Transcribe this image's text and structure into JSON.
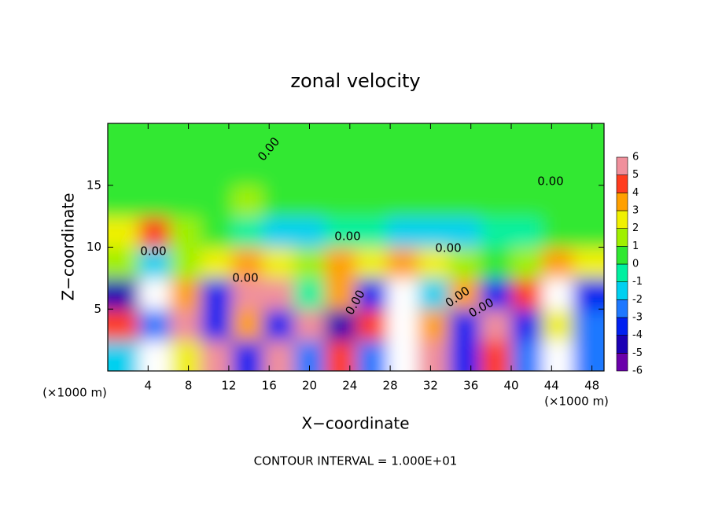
{
  "chart_data": {
    "type": "heatmap",
    "title": "zonal velocity",
    "x_label": "X−coordinate",
    "y_label": "Z−coordinate",
    "x_unit_label": "(×1000 m)",
    "note": "CONTOUR INTERVAL = 1.000E+01",
    "xlim": [
      0,
      49.2
    ],
    "ylim": [
      0,
      20
    ],
    "xticks": [
      4,
      8,
      12,
      16,
      20,
      24,
      28,
      32,
      36,
      40,
      44,
      48
    ],
    "yticks": [
      5,
      10,
      15
    ],
    "z": [
      [
        -2,
        7,
        2,
        5,
        -4,
        5,
        -3,
        4,
        -3,
        7,
        6,
        -4,
        4,
        -3,
        7,
        -3
      ],
      [
        4,
        -3,
        6,
        -4,
        3,
        -4,
        6,
        -5,
        4,
        7,
        3,
        -4,
        5,
        -4,
        2,
        -3
      ],
      [
        -5,
        7,
        3,
        -4,
        5,
        6,
        -1,
        3,
        -4,
        7,
        -2,
        3,
        -4,
        4,
        7,
        -4
      ],
      [
        1,
        -2,
        1,
        2,
        3,
        2,
        1,
        3,
        2,
        3,
        2,
        1,
        0,
        1,
        3,
        2
      ],
      [
        2,
        4,
        1,
        0,
        -1,
        -2,
        -2,
        -1,
        -1,
        -2,
        -2,
        -2,
        -1,
        -1,
        0,
        0
      ],
      [
        0,
        0,
        0,
        0,
        1,
        0,
        0,
        0,
        0,
        0,
        0,
        0,
        0,
        0,
        0,
        0
      ],
      [
        0,
        0,
        0,
        0,
        0,
        0,
        0,
        0,
        0,
        0,
        0,
        0,
        0,
        0,
        0,
        0
      ],
      [
        0,
        0,
        0,
        0,
        0,
        0,
        0,
        0,
        0,
        0,
        0,
        0,
        0,
        0,
        0,
        0
      ]
    ],
    "levels": [
      -6,
      -5,
      -4,
      -3,
      -2,
      -1,
      0,
      1,
      2,
      3,
      4,
      5,
      6
    ],
    "colors": [
      "#6a00aa",
      "#1a00b4",
      "#0020f0",
      "#1e78ff",
      "#00d0f0",
      "#00f0a0",
      "#30e830",
      "#a0f000",
      "#f0f000",
      "#ffa000",
      "#ff3c1e",
      "#f0909c"
    ],
    "over_color": "#ffffff",
    "under_color": "#6a00aa",
    "contour_labels": [
      "0.00",
      "0.00",
      "0.00",
      "0.00",
      "0.00",
      "0.00",
      "0.00",
      "0.00",
      "0.00"
    ]
  }
}
